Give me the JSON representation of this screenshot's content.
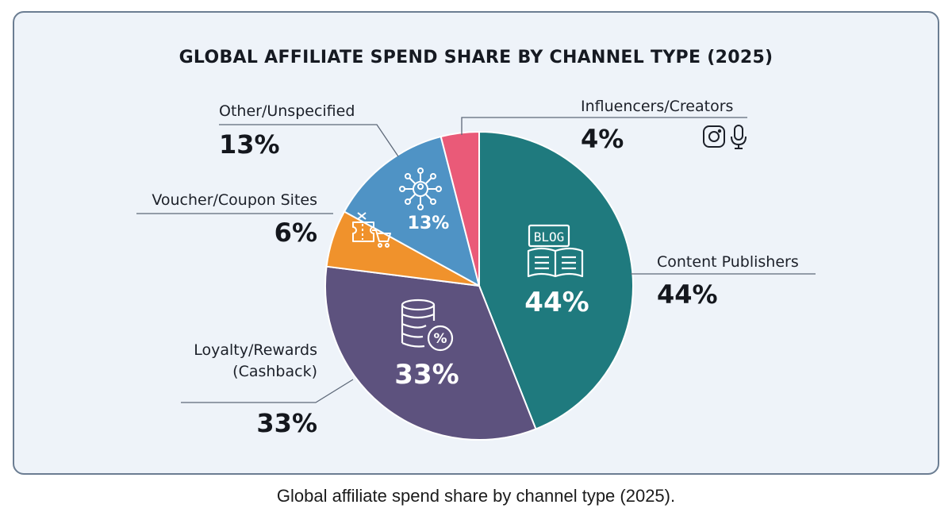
{
  "caption": "Global affiliate spend share by channel type (2025).",
  "chart_data": {
    "type": "pie",
    "title": "GLOBAL AFFILIATE SPEND SHARE BY CHANNEL TYPE (2025)",
    "start_angle_deg": 0,
    "direction": "clockwise",
    "slices": [
      {
        "label": "Content Publishers",
        "value": 44,
        "value_label": "44%",
        "inside_label": "44%",
        "color": "#1f7a7e",
        "icon": "blog-book-icon"
      },
      {
        "label": "Loyalty/Rewards (Cashback)",
        "label_lines": [
          "Loyalty/Rewards",
          "(Cashback)"
        ],
        "value": 33,
        "value_label": "33%",
        "inside_label": "33%",
        "color": "#5d527e",
        "icon": "coins-percent-icon"
      },
      {
        "label": "Voucher/Coupon Sites",
        "value": 6,
        "value_label": "6%",
        "color": "#f0922c",
        "icon": "coupon-cart-icon"
      },
      {
        "label": "Other/Unspecified",
        "value": 13,
        "value_label": "13%",
        "inside_label": "13%",
        "color": "#4f93c5",
        "icon": "network-hub-icon"
      },
      {
        "label": "Influencers/Creators",
        "value": 4,
        "value_label": "4%",
        "color": "#ea5a78",
        "icon": "instagram-microphone-icon"
      }
    ]
  }
}
